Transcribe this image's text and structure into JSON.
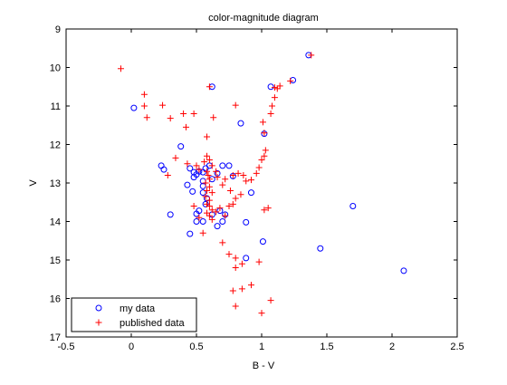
{
  "chart_data": {
    "type": "scatter",
    "title": "color-magnitude diagram",
    "xlabel": "B - V",
    "ylabel": "V",
    "xlim": [
      -0.5,
      2.5
    ],
    "ylim": [
      9,
      17
    ],
    "y_inverted": true,
    "x_ticks": [
      "-0.5",
      "0",
      "0.5",
      "1",
      "1.5",
      "2",
      "2.5"
    ],
    "y_ticks": [
      "9",
      "10",
      "11",
      "12",
      "13",
      "14",
      "15",
      "16",
      "17"
    ],
    "grid": false,
    "legend_position": "bottom-left",
    "series": [
      {
        "name": "my data",
        "marker": "circle",
        "color": "#0000ff",
        "points": [
          [
            0.02,
            11.05
          ],
          [
            1.36,
            9.68
          ],
          [
            0.62,
            10.5
          ],
          [
            1.07,
            10.5
          ],
          [
            1.24,
            10.33
          ],
          [
            0.84,
            11.45
          ],
          [
            1.02,
            11.72
          ],
          [
            0.38,
            12.05
          ],
          [
            0.23,
            12.55
          ],
          [
            0.25,
            12.65
          ],
          [
            0.45,
            12.62
          ],
          [
            0.48,
            12.72
          ],
          [
            0.5,
            12.78
          ],
          [
            0.52,
            12.7
          ],
          [
            0.57,
            12.62
          ],
          [
            0.6,
            12.55
          ],
          [
            0.55,
            12.72
          ],
          [
            0.7,
            12.55
          ],
          [
            0.75,
            12.55
          ],
          [
            0.66,
            12.75
          ],
          [
            0.78,
            12.82
          ],
          [
            0.48,
            12.85
          ],
          [
            0.62,
            12.9
          ],
          [
            0.43,
            13.05
          ],
          [
            0.55,
            13.08
          ],
          [
            0.47,
            13.22
          ],
          [
            0.55,
            13.25
          ],
          [
            0.92,
            13.25
          ],
          [
            0.57,
            13.55
          ],
          [
            0.52,
            13.72
          ],
          [
            0.68,
            13.72
          ],
          [
            0.62,
            13.82
          ],
          [
            0.3,
            13.82
          ],
          [
            0.5,
            13.8
          ],
          [
            0.72,
            13.82
          ],
          [
            0.55,
            14.0
          ],
          [
            0.5,
            14.0
          ],
          [
            0.7,
            14.0
          ],
          [
            0.88,
            14.02
          ],
          [
            0.66,
            14.12
          ],
          [
            0.45,
            14.32
          ],
          [
            1.01,
            14.52
          ],
          [
            1.45,
            14.7
          ],
          [
            0.88,
            14.95
          ],
          [
            1.7,
            13.6
          ],
          [
            2.09,
            15.28
          ],
          [
            0.55,
            12.95
          ],
          [
            0.58,
            13.4
          ]
        ]
      },
      {
        "name": "published data",
        "marker": "plus",
        "color": "#ff0000",
        "points": [
          [
            -0.08,
            10.03
          ],
          [
            0.1,
            10.7
          ],
          [
            0.1,
            11.0
          ],
          [
            0.12,
            11.3
          ],
          [
            0.24,
            10.98
          ],
          [
            0.3,
            11.32
          ],
          [
            0.4,
            11.2
          ],
          [
            0.42,
            11.55
          ],
          [
            0.48,
            11.2
          ],
          [
            0.58,
            11.8
          ],
          [
            0.63,
            11.3
          ],
          [
            0.8,
            10.98
          ],
          [
            0.6,
            10.5
          ],
          [
            1.01,
            11.42
          ],
          [
            1.07,
            11.2
          ],
          [
            1.08,
            11.0
          ],
          [
            1.1,
            10.78
          ],
          [
            1.12,
            10.55
          ],
          [
            1.1,
            10.52
          ],
          [
            1.14,
            10.48
          ],
          [
            1.22,
            10.35
          ],
          [
            1.38,
            9.68
          ],
          [
            0.34,
            12.35
          ],
          [
            0.28,
            12.8
          ],
          [
            0.43,
            12.5
          ],
          [
            0.5,
            12.55
          ],
          [
            0.52,
            12.65
          ],
          [
            0.56,
            12.45
          ],
          [
            0.58,
            12.3
          ],
          [
            0.6,
            12.4
          ],
          [
            0.62,
            12.55
          ],
          [
            0.65,
            12.7
          ],
          [
            0.66,
            12.85
          ],
          [
            0.72,
            12.9
          ],
          [
            0.78,
            12.8
          ],
          [
            0.82,
            12.75
          ],
          [
            0.86,
            12.8
          ],
          [
            0.88,
            12.95
          ],
          [
            0.92,
            12.92
          ],
          [
            0.96,
            12.75
          ],
          [
            0.98,
            12.6
          ],
          [
            1.0,
            12.4
          ],
          [
            1.02,
            12.3
          ],
          [
            1.03,
            12.15
          ],
          [
            1.02,
            11.7
          ],
          [
            0.58,
            12.7
          ],
          [
            0.59,
            12.8
          ],
          [
            0.6,
            12.9
          ],
          [
            0.57,
            13.0
          ],
          [
            0.6,
            13.1
          ],
          [
            0.58,
            13.2
          ],
          [
            0.62,
            13.25
          ],
          [
            0.57,
            13.35
          ],
          [
            0.6,
            13.45
          ],
          [
            0.58,
            13.55
          ],
          [
            0.6,
            13.6
          ],
          [
            0.62,
            13.7
          ],
          [
            0.58,
            13.78
          ],
          [
            0.6,
            13.85
          ],
          [
            0.62,
            13.95
          ],
          [
            0.65,
            13.75
          ],
          [
            0.68,
            13.65
          ],
          [
            0.72,
            13.85
          ],
          [
            0.75,
            13.6
          ],
          [
            0.78,
            13.55
          ],
          [
            0.84,
            13.3
          ],
          [
            0.8,
            13.4
          ],
          [
            0.76,
            13.2
          ],
          [
            0.7,
            13.05
          ],
          [
            0.52,
            13.9
          ],
          [
            0.48,
            13.6
          ],
          [
            0.55,
            14.3
          ],
          [
            1.02,
            13.7
          ],
          [
            1.05,
            13.65
          ],
          [
            0.7,
            14.55
          ],
          [
            0.75,
            14.85
          ],
          [
            0.8,
            14.95
          ],
          [
            0.8,
            15.2
          ],
          [
            0.85,
            15.1
          ],
          [
            0.98,
            15.05
          ],
          [
            0.78,
            15.8
          ],
          [
            0.85,
            15.75
          ],
          [
            0.92,
            15.65
          ],
          [
            0.8,
            16.2
          ],
          [
            1.07,
            16.05
          ],
          [
            1.0,
            16.38
          ]
        ]
      }
    ]
  }
}
